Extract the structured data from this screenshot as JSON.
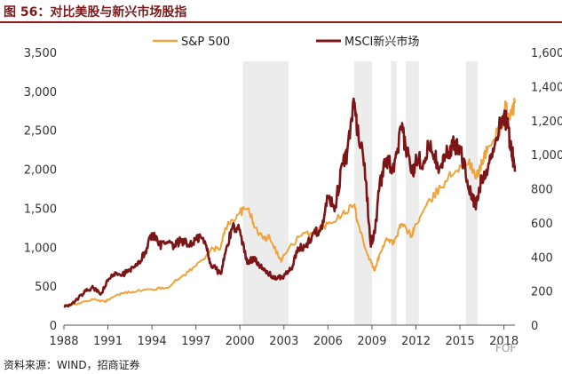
{
  "title": "图 56：对比美股与新兴市场股指",
  "source": "资料来源：WIND，招商证券",
  "watermark": "FOF",
  "colors": {
    "sp500": "#f0a33a",
    "msci": "#7b1516",
    "shade": "#ececec",
    "title_rule": "#8b1a1a"
  },
  "chart_data": {
    "type": "line",
    "title": "",
    "xlabel": "",
    "ylabel": "",
    "x_range": [
      1988,
      2018.75
    ],
    "x_ticks": [
      1988,
      1991,
      1994,
      1997,
      2000,
      2003,
      2006,
      2009,
      2012,
      2015,
      2018
    ],
    "y_left": {
      "range": [
        0,
        3500
      ],
      "ticks": [
        "0",
        "500",
        "1,000",
        "1,500",
        "2,000",
        "2,500",
        "3,000",
        "3,500"
      ],
      "tick_values": [
        0,
        500,
        1000,
        1500,
        2000,
        2500,
        3000,
        3500
      ]
    },
    "y_right": {
      "range": [
        0,
        1600
      ],
      "ticks": [
        "0",
        "200",
        "400",
        "600",
        "800",
        "1,000",
        "1,200",
        "1,400",
        "1,600"
      ],
      "tick_values": [
        0,
        200,
        400,
        600,
        800,
        1000,
        1200,
        1400,
        1600
      ]
    },
    "shaded_periods": [
      [
        2000.2,
        2003.3
      ],
      [
        2007.8,
        2009.0
      ],
      [
        2010.3,
        2010.7
      ],
      [
        2011.3,
        2012.2
      ],
      [
        2015.4,
        2016.2
      ]
    ],
    "legend": [
      "S&P 500",
      "MSCI新兴市场"
    ],
    "series": [
      {
        "name": "S&P 500",
        "axis": "left",
        "x": [
          1988,
          1989,
          1990,
          1990.8,
          1991,
          1992,
          1993,
          1994,
          1995,
          1996,
          1997,
          1998,
          1998.7,
          1999,
          2000,
          2000.6,
          2001,
          2001.7,
          2002,
          2002.8,
          2003,
          2004,
          2005,
          2006,
          2007,
          2007.8,
          2008,
          2008.7,
          2009.2,
          2009.5,
          2010,
          2010.5,
          2011,
          2011.7,
          2012,
          2013,
          2014,
          2015,
          2015.6,
          2016.1,
          2016.5,
          2017,
          2018,
          2018.1,
          2018.5,
          2018.75
        ],
        "values": [
          250,
          280,
          330,
          300,
          330,
          410,
          440,
          460,
          480,
          620,
          760,
          960,
          1000,
          1250,
          1450,
          1500,
          1250,
          1100,
          1150,
          820,
          900,
          1130,
          1200,
          1300,
          1440,
          1550,
          1350,
          900,
          700,
          900,
          1120,
          1050,
          1300,
          1150,
          1300,
          1600,
          1850,
          2050,
          2100,
          1880,
          2100,
          2300,
          2600,
          2800,
          2700,
          2850
        ]
      },
      {
        "name": "MSCI新兴市场",
        "axis": "right",
        "x": [
          1988,
          1988.5,
          1989,
          1989.5,
          1990,
          1990.5,
          1991,
          1991.5,
          1992,
          1992.5,
          1993,
          1993.5,
          1994,
          1994.5,
          1995,
          1995.5,
          1996,
          1996.5,
          1997,
          1997.3,
          1997.7,
          1998,
          1998.7,
          1999,
          1999.5,
          2000,
          2000.5,
          2001,
          2001.5,
          2002,
          2002.5,
          2003,
          2003.5,
          2004,
          2004.5,
          2005,
          2005.5,
          2006,
          2006.5,
          2007,
          2007.3,
          2007.8,
          2008,
          2008.5,
          2008.9,
          2009.2,
          2009.5,
          2010,
          2010.5,
          2011,
          2011.3,
          2011.8,
          2012,
          2012.5,
          2013,
          2013.5,
          2014,
          2014.5,
          2015,
          2015.5,
          2015.9,
          2016.1,
          2016.5,
          2017,
          2017.5,
          2018,
          2018.2,
          2018.5,
          2018.75
        ],
        "values": [
          110,
          120,
          160,
          200,
          220,
          180,
          260,
          310,
          300,
          320,
          350,
          420,
          540,
          470,
          480,
          460,
          500,
          470,
          500,
          520,
          470,
          360,
          300,
          420,
          580,
          560,
          360,
          400,
          330,
          300,
          270,
          290,
          330,
          450,
          460,
          540,
          560,
          750,
          700,
          950,
          1000,
          1300,
          1150,
          950,
          480,
          540,
          800,
          980,
          900,
          1150,
          1050,
          880,
          1000,
          950,
          1080,
          930,
          1000,
          1050,
          1050,
          850,
          730,
          700,
          870,
          950,
          1100,
          1240,
          1180,
          1050,
          900
        ]
      }
    ]
  }
}
